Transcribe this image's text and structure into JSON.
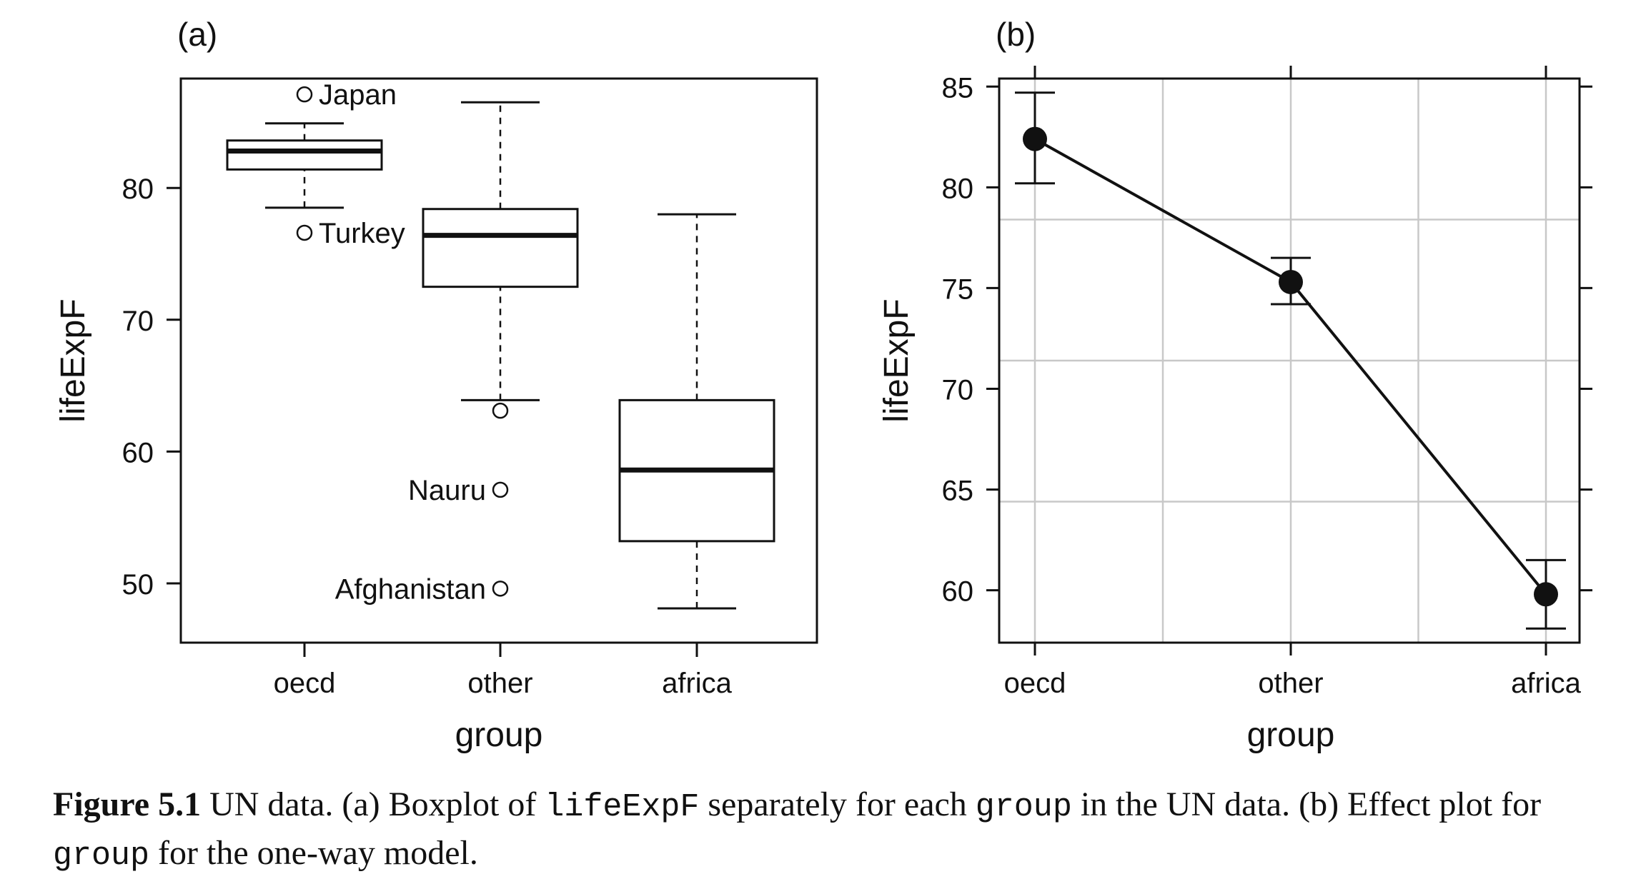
{
  "chart_data": [
    {
      "type": "boxplot",
      "panel_label": "(a)",
      "xlabel": "group",
      "ylabel": "lifeExpF",
      "ylim": [
        45.5,
        88.3
      ],
      "yticks": [
        50,
        60,
        70,
        80
      ],
      "categories": [
        "oecd",
        "other",
        "africa"
      ],
      "boxes": [
        {
          "group": "oecd",
          "whisker_low": 78.5,
          "q1": 81.4,
          "median": 82.8,
          "q3": 83.6,
          "whisker_high": 84.9,
          "outliers": [
            {
              "value": 87.1,
              "label": "Japan",
              "label_side": "right"
            },
            {
              "value": 76.6,
              "label": "Turkey",
              "label_side": "right"
            }
          ]
        },
        {
          "group": "other",
          "whisker_low": 63.9,
          "q1": 72.5,
          "median": 76.4,
          "q3": 78.4,
          "whisker_high": 86.5,
          "outliers": [
            {
              "value": 63.1,
              "label": "",
              "label_side": "none"
            },
            {
              "value": 57.1,
              "label": "Nauru",
              "label_side": "left"
            },
            {
              "value": 49.6,
              "label": "Afghanistan",
              "label_side": "left"
            }
          ]
        },
        {
          "group": "africa",
          "whisker_low": 48.1,
          "q1": 53.2,
          "median": 58.6,
          "q3": 63.9,
          "whisker_high": 78.0,
          "outliers": []
        }
      ]
    },
    {
      "type": "line",
      "panel_label": "(b)",
      "xlabel": "group",
      "ylabel": "lifeExpF",
      "ylim": [
        57.4,
        85.4
      ],
      "yticks": [
        60,
        65,
        70,
        75,
        80,
        85
      ],
      "categories": [
        "oecd",
        "other",
        "africa"
      ],
      "series": [
        {
          "values": [
            82.4,
            75.3,
            59.8
          ],
          "lower": [
            80.2,
            74.2,
            58.1
          ],
          "upper": [
            84.7,
            76.5,
            61.5
          ]
        }
      ]
    }
  ],
  "caption": {
    "label": "Figure 5.1",
    "t1": "UN data. (a) Boxplot of ",
    "c1": "lifeExpF",
    "t2": " separately for each ",
    "c2": "group",
    "t3": " in the UN data. (b) Effect plot for ",
    "c3": "group",
    "t4": " for the one-way model."
  }
}
